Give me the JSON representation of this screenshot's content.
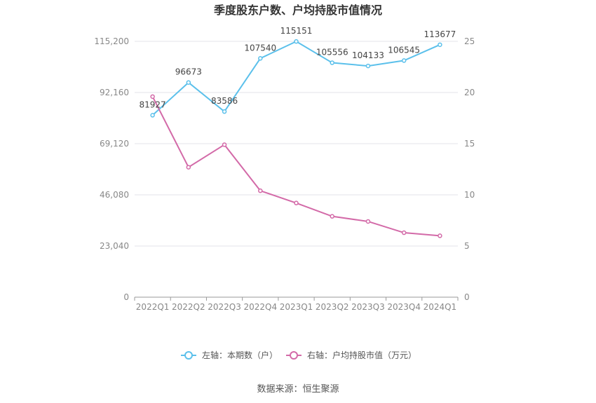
{
  "chart_data": {
    "type": "line",
    "title": "季度股东户数、户均持股市值情况",
    "categories": [
      "2022Q1",
      "2022Q2",
      "2022Q3",
      "2022Q4",
      "2023Q1",
      "2023Q2",
      "2023Q3",
      "2023Q4",
      "2024Q1"
    ],
    "series": [
      {
        "name": "左轴：本期数（户）",
        "axis": "left",
        "color": "#5bc0eb",
        "values": [
          81927,
          96673,
          83586,
          107540,
          115151,
          105556,
          104133,
          106545,
          113677
        ],
        "data_labels": [
          "81927",
          "96673",
          "83586",
          "107540",
          "115151",
          "105556",
          "104133",
          "106545",
          "113677"
        ]
      },
      {
        "name": "右轴：户均持股市值（万元）",
        "axis": "right",
        "color": "#d36aa8",
        "values": [
          19.6,
          12.7,
          14.9,
          10.4,
          9.2,
          7.9,
          7.4,
          6.3,
          6.0
        ]
      }
    ],
    "left_axis": {
      "min": 0,
      "max": 115200,
      "ticks": [
        0,
        23040,
        46080,
        69120,
        92160,
        115200
      ],
      "tick_labels": [
        "0",
        "23,040",
        "46,080",
        "69,120",
        "92,160",
        "115,200"
      ]
    },
    "right_axis": {
      "min": 0,
      "max": 25,
      "ticks": [
        0,
        5,
        10,
        15,
        20,
        25
      ],
      "tick_labels": [
        "0",
        "5",
        "10",
        "15",
        "20",
        "25"
      ]
    },
    "grid": true,
    "legend_position": "bottom"
  },
  "source_text": "数据来源：恒生聚源"
}
